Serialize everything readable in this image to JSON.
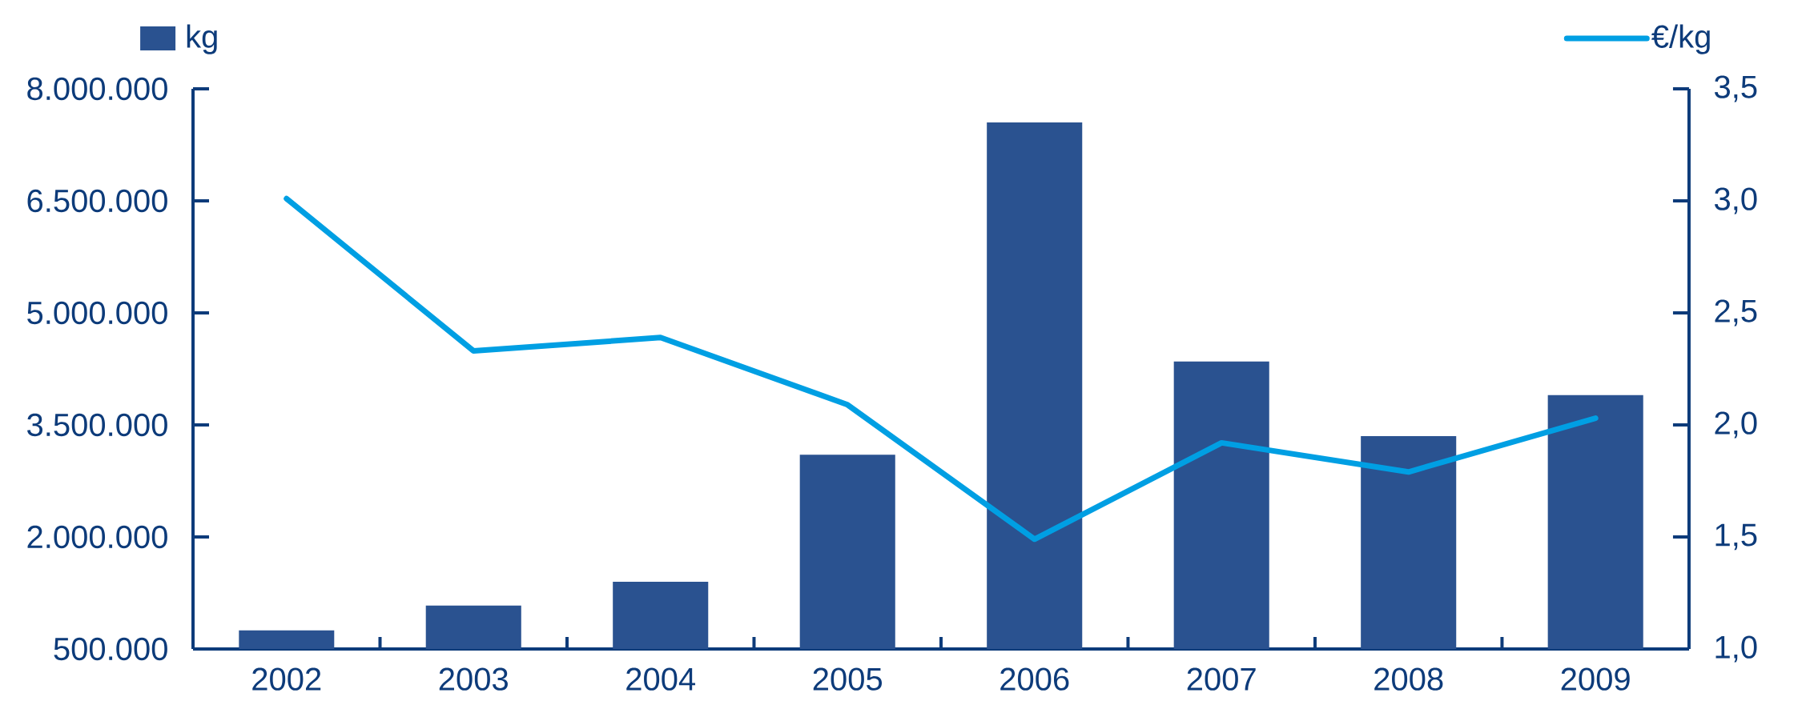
{
  "chart_data": {
    "type": "bar",
    "categories": [
      "2002",
      "2003",
      "2004",
      "2005",
      "2006",
      "2007",
      "2008",
      "2009"
    ],
    "series": [
      {
        "name": "kg",
        "color": "#2a5290",
        "values": [
          750000,
          1080000,
          1400000,
          3100000,
          7550000,
          4350000,
          3350000,
          3900000
        ]
      },
      {
        "name": "€/kg",
        "type": "line",
        "axis": "y2",
        "color": "#009fe3",
        "values": [
          3.01,
          2.33,
          2.39,
          2.09,
          1.49,
          1.92,
          1.79,
          2.03
        ]
      }
    ],
    "ylim": [
      500000,
      8000000
    ],
    "yticks": [
      {
        "value": 500000,
        "label": "500.000"
      },
      {
        "value": 2000000,
        "label": "2.000.000"
      },
      {
        "value": 3500000,
        "label": "3.500.000"
      },
      {
        "value": 5000000,
        "label": "5.000.000"
      },
      {
        "value": 6500000,
        "label": "6.500.000"
      },
      {
        "value": 8000000,
        "label": "8.000.000"
      }
    ],
    "y2lim": [
      1,
      3.5
    ],
    "y2ticks": [
      {
        "value": 1,
        "label": "1,0"
      },
      {
        "value": 1.5,
        "label": "1,5"
      },
      {
        "value": 2,
        "label": "2,0"
      },
      {
        "value": 2.5,
        "label": "2,5"
      },
      {
        "value": 3,
        "label": "3,0"
      },
      {
        "value": 3.5,
        "label": "3,5"
      }
    ],
    "legend": "top",
    "marker": "none"
  }
}
